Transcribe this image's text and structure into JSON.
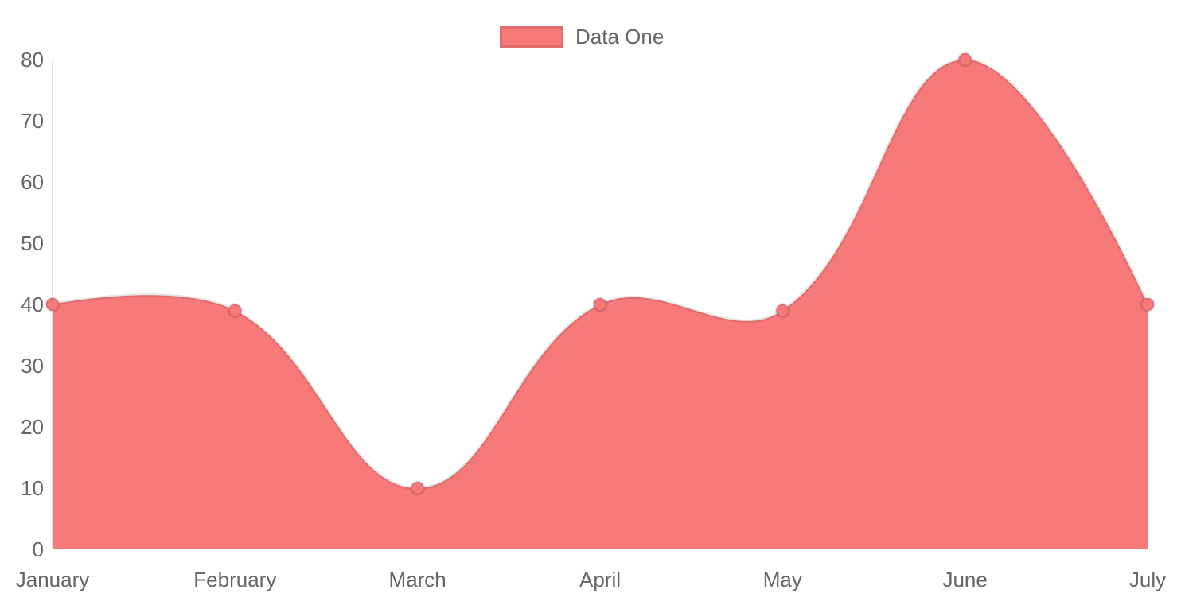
{
  "chart_data": {
    "type": "area",
    "title": "",
    "xlabel": "",
    "ylabel": "",
    "categories": [
      "January",
      "February",
      "March",
      "April",
      "May",
      "June",
      "July"
    ],
    "series": [
      {
        "name": "Data One",
        "values": [
          40,
          39,
          10,
          40,
          39,
          80,
          40
        ]
      }
    ],
    "ylim": [
      0,
      80
    ],
    "yticks": [
      0,
      10,
      20,
      30,
      40,
      50,
      60,
      70,
      80
    ],
    "grid": false,
    "legend_position": "top-center",
    "curve": "bezier-tension-0.4",
    "colors": {
      "fill": "#f87979",
      "line": "rgba(0,0,0,0.10)",
      "point_fill": "#f87979",
      "point_border": "rgba(0,0,0,0.12)",
      "axis_line": "rgba(0,0,0,0.10)",
      "tick_text": "#666666",
      "background": "#ffffff"
    }
  }
}
